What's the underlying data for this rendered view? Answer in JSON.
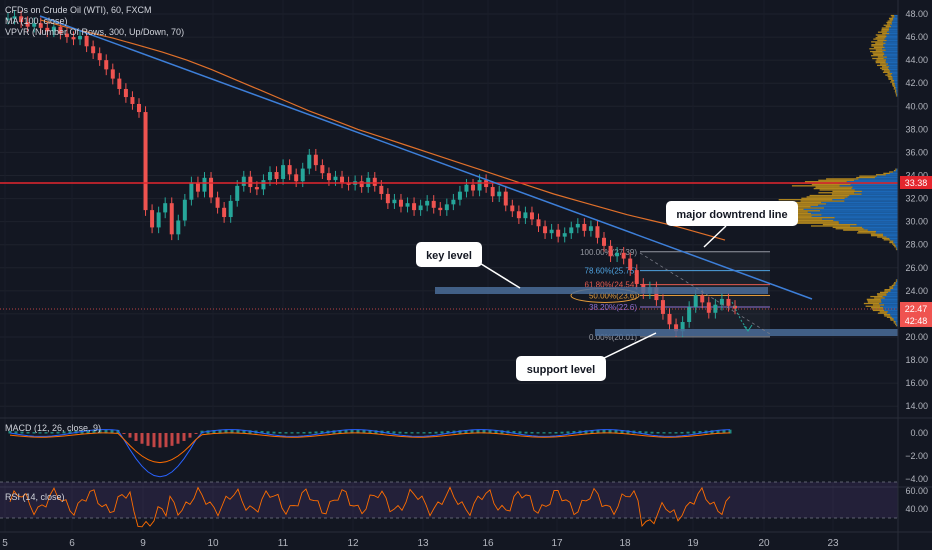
{
  "legend": {
    "main": "CFDs on Crude Oil (WTI), 60, FXCM",
    "ma": "MA (100, close)",
    "vpvr": "VPVR (Number Of Rows, 300, Up/Down, 70)"
  },
  "macd": {
    "label": "MACD (12, 26, close, 9)",
    "ticks": [
      "0.00",
      "−2.00",
      "−4.00"
    ]
  },
  "rsi": {
    "label": "RSI (14, close)",
    "ticks": [
      "60.00",
      "40.00"
    ]
  },
  "colors": {
    "background": "#131722",
    "up": "#26a69a",
    "down": "#ef5350",
    "trendline": "#3d7fd9",
    "ma": "#e0702a",
    "resistance": "#e4262e",
    "zone": "#4a6c98",
    "vpvr_up": "#1e71c8",
    "vpvr_down": "#c4931d"
  },
  "price_badges": {
    "resistance": "33.38",
    "current": "22.47",
    "countdown": "42:48"
  },
  "annotations": {
    "trend": "major downtrend line",
    "key": "key level",
    "support": "support level"
  },
  "fib_levels": [
    {
      "label": "100.00%(27.39)",
      "price": 27.39,
      "color": "#9598a1"
    },
    {
      "label": "78.60%(25.75)",
      "price": 25.75,
      "color": "#4fa3e0"
    },
    {
      "label": "61.80%(24.54)",
      "price": 24.54,
      "color": "#e05a4f"
    },
    {
      "label": "50.00%(23.6)",
      "price": 23.6,
      "color": "#e09a3a"
    },
    {
      "label": "38.20%(22.6)",
      "price": 22.6,
      "color": "#8e6fcf"
    },
    {
      "label": "0.00%(20.01)",
      "price": 20.01,
      "color": "#9598a1"
    }
  ],
  "chart_data": {
    "type": "candlestick",
    "y_axis": {
      "ticks": [
        "48.00",
        "46.00",
        "44.00",
        "42.00",
        "40.00",
        "38.00",
        "36.00",
        "34.00",
        "32.00",
        "30.00",
        "28.00",
        "26.00",
        "24.00",
        "22.00",
        "20.00",
        "18.00",
        "16.00",
        "14.00"
      ],
      "range": [
        13,
        49
      ]
    },
    "x_axis": {
      "ticks": [
        "5",
        "6",
        "9",
        "10",
        "11",
        "12",
        "13",
        "16",
        "17",
        "18",
        "19",
        "20",
        "23"
      ]
    },
    "series_close": [
      47.6,
      47.8,
      47.3,
      46.9,
      47.2,
      46.8,
      46.5,
      46.9,
      46.3,
      46.0,
      45.8,
      46.1,
      45.2,
      44.6,
      44.0,
      43.2,
      42.4,
      41.5,
      40.8,
      40.2,
      39.5,
      31.0,
      29.5,
      30.8,
      31.6,
      28.9,
      30.1,
      31.9,
      33.4,
      32.6,
      33.8,
      32.1,
      31.2,
      30.4,
      31.8,
      33.1,
      33.9,
      33.0,
      32.8,
      33.6,
      34.3,
      33.7,
      34.9,
      34.1,
      33.5,
      34.6,
      35.8,
      34.9,
      34.2,
      33.6,
      33.9,
      33.4,
      33.2,
      33.5,
      33.0,
      33.8,
      33.1,
      32.4,
      31.6,
      31.9,
      31.3,
      31.6,
      31.0,
      31.4,
      31.8,
      31.2,
      31.0,
      31.5,
      31.9,
      32.6,
      33.2,
      32.7,
      33.6,
      33.0,
      32.2,
      32.6,
      31.4,
      30.9,
      30.3,
      30.8,
      30.2,
      29.6,
      29.0,
      29.3,
      28.7,
      29.0,
      29.5,
      29.8,
      29.2,
      29.6,
      28.6,
      27.9,
      27.0,
      27.3,
      26.8,
      25.8,
      24.6,
      23.8,
      24.3,
      23.2,
      22.0,
      21.1,
      20.5,
      21.3,
      22.6,
      23.6,
      23.0,
      22.1,
      22.8,
      23.3,
      22.7,
      22.47
    ],
    "ma_100": [
      47.5,
      46.9,
      46.4,
      45.9,
      45.3,
      44.7,
      44.0,
      43.2,
      42.3,
      41.4,
      40.5,
      39.6,
      38.8,
      38.0,
      37.3,
      36.6,
      35.9,
      35.2,
      34.5,
      33.8,
      33.1,
      32.4,
      31.8,
      31.2,
      30.6,
      30.1,
      29.6,
      29.0,
      28.4
    ],
    "trendline": {
      "start": [
        47.3
      ],
      "end": [
        23.2
      ]
    },
    "resistance": 33.38,
    "key_level": 24.2,
    "support_level": 20.3
  }
}
